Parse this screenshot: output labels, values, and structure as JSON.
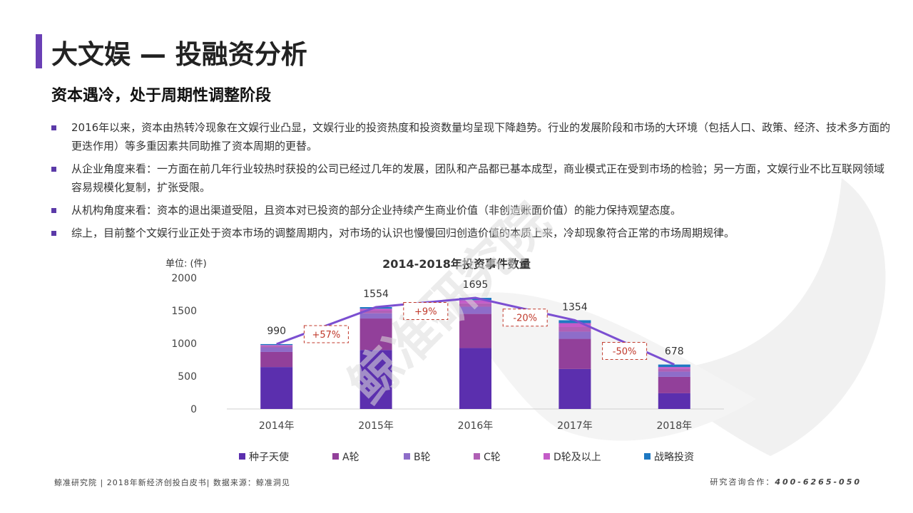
{
  "header": {
    "title": "大文娱 — 投融资分析",
    "subtitle": "资本遇冷，处于周期性调整阶段"
  },
  "bullets": [
    "2016年以来，资本由热转冷现象在文娱行业凸显，文娱行业的投资热度和投资数量均呈现下降趋势。行业的发展阶段和市场的大环境（包括人口、政策、经济、技术多方面的更迭作用）等多重因素共同助推了资本周期的更替。",
    "从企业角度来看：一方面在前几年行业较热时获投的公司已经过几年的发展，团队和产品都已基本成型，商业模式正在受到市场的检验；另一方面，文娱行业不比互联网领域容易规模化复制，扩张受限。",
    "从机构角度来看：资本的退出渠道受阻，且资本对已投资的部分企业持续产生商业价值（非创造账面价值）的能力保持观望态度。",
    "综上，目前整个文娱行业正处于资本市场的调整周期内，对市场的认识也慢慢回归创造价值的本质上来，冷却现象符合正常的市场周期规律。"
  ],
  "watermark": "鲸准研究院",
  "chart_data": {
    "type": "bar",
    "stacked": true,
    "title": "2014-2018年投资事件数量",
    "ylabel": "单位: (件)",
    "ylim": [
      0,
      2000
    ],
    "yticks": [
      0,
      500,
      1000,
      1500,
      2000
    ],
    "categories": [
      "2014年",
      "2015年",
      "2016年",
      "2017年",
      "2018年"
    ],
    "series": [
      {
        "name": "种子天使",
        "color": "#5b2fae",
        "values": [
          640,
          900,
          930,
          610,
          240
        ]
      },
      {
        "name": "A轮",
        "color": "#92409a",
        "values": [
          230,
          480,
          520,
          460,
          250
        ]
      },
      {
        "name": "B轮",
        "color": "#8e6dc9",
        "values": [
          70,
          80,
          110,
          110,
          80
        ]
      },
      {
        "name": "C轮",
        "color": "#b060b5",
        "values": [
          20,
          40,
          50,
          70,
          40
        ]
      },
      {
        "name": "D轮及以上",
        "color": "#c45cc8",
        "values": [
          15,
          30,
          50,
          60,
          30
        ]
      },
      {
        "name": "战略投资",
        "color": "#1e78c2",
        "values": [
          15,
          24,
          35,
          44,
          38
        ]
      }
    ],
    "totals": [
      990,
      1554,
      1695,
      1354,
      678
    ],
    "total_line_color": "#7b4fd1",
    "growth_labels": [
      "+57%",
      "+9%",
      "-20%",
      "-50%"
    ],
    "legend_position": "bottom",
    "grid": false
  },
  "footer": {
    "left": "鲸准研究院 | 2018年新经济创投白皮书| 数据来源：鲸准洞见",
    "right_label": "研究咨询合作：",
    "right_phone": "400-6265-050"
  }
}
